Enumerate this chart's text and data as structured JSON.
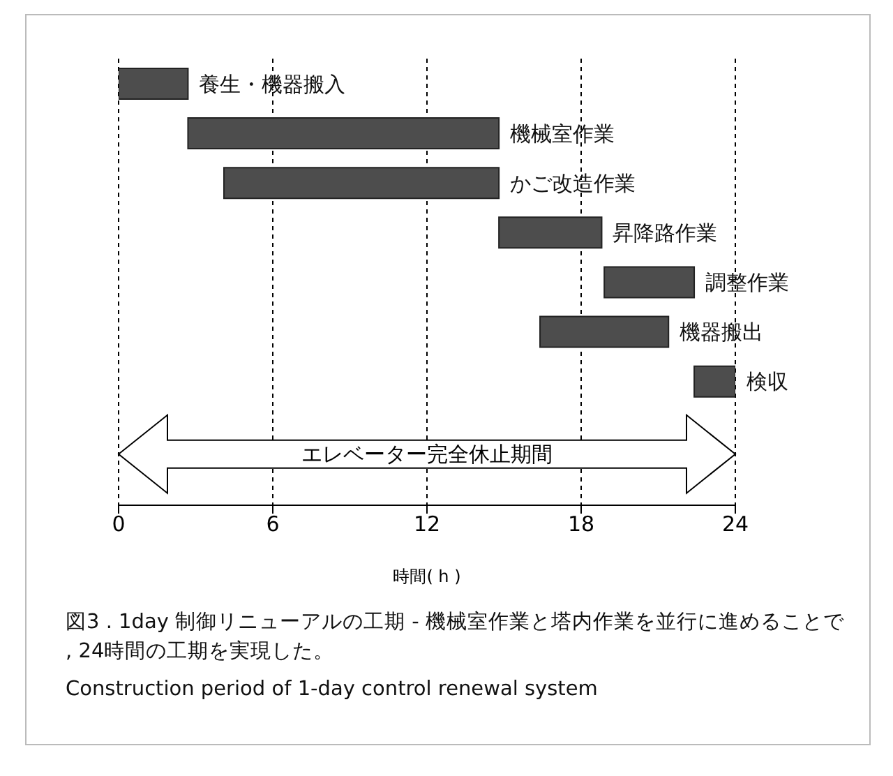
{
  "chart_data": {
    "type": "bar",
    "orientation": "horizontal",
    "categories": [
      "養生・機器搬入",
      "機械室作業",
      "かご改造作業",
      "昇降路作業",
      "調整作業",
      "機器搬出",
      "検収"
    ],
    "base": [
      0,
      2.7,
      4.1,
      14.8,
      18.9,
      16.4,
      22.4
    ],
    "values": [
      2.7,
      12.1,
      10.7,
      4.0,
      3.5,
      5.0,
      1.6
    ],
    "color": "#4d4d4d",
    "xlim": [
      0,
      24
    ],
    "xticks": [
      0,
      6,
      12,
      18,
      24
    ],
    "xlabel": "時間( h )",
    "grid": "x",
    "tick_labels": "x",
    "annotations": [
      "エレベーター完全休止期間",
      "図3 . 1day 制御リニューアルの工期 - 機械室作業と塔内作業を並行に進めることで , 24時間の工期を実現した。",
      "Construction period of 1-day control renewal system"
    ]
  }
}
